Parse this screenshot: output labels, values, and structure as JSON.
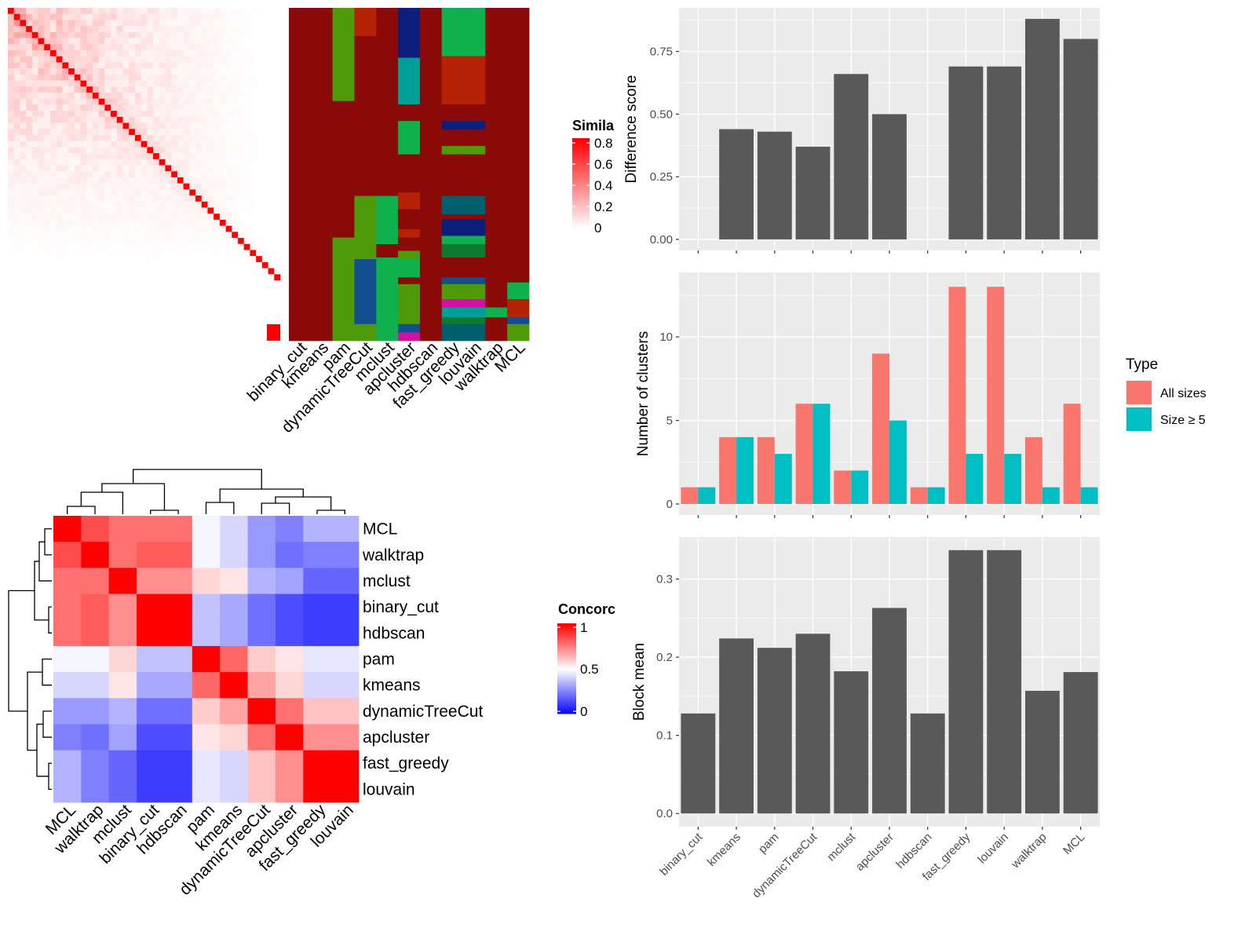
{
  "colors": {
    "dark_red": "#8B0A0A",
    "green1": "#0FB14F",
    "green2": "#4E9A0B",
    "green3": "#0C7A31",
    "teal1": "#009E96",
    "teal2": "#005F6D",
    "navy": "#0C1F7A",
    "blue_steel": "#124F8F",
    "magenta": "#D40FA8",
    "orange_red": "#B52205",
    "bar_gray": "#595959",
    "salmon": "#F8766D",
    "cyan": "#00BFC4",
    "panel_bg": "#EBEBEB",
    "grid": "#FFFFFF"
  },
  "legends": {
    "similarity": {
      "title": "Simila",
      "ticks": [
        "0.8",
        "0.6",
        "0.4",
        "0.2",
        "0"
      ]
    },
    "concordance": {
      "title": "Concorc",
      "ticks": [
        "1",
        "0.5",
        "0"
      ]
    },
    "type": {
      "title": "Type",
      "items": [
        "All sizes",
        "Size ≥ 5"
      ]
    }
  },
  "assign_methods": [
    "binary_cut",
    "kmeans",
    "pam",
    "dynamicTreeCut",
    "mclust",
    "apcluster",
    "hdbscan",
    "fast_greedy",
    "louvain",
    "walktrap",
    "MCL"
  ],
  "assign_columns": [
    [
      [
        "dark_red",
        0,
        1
      ]
    ],
    [
      [
        "dark_red",
        0,
        1
      ]
    ],
    [
      [
        "green2",
        0,
        0.28
      ],
      [
        "dark_red",
        0.28,
        0.69
      ],
      [
        "green2",
        0.69,
        1
      ]
    ],
    [
      [
        "orange_red",
        0,
        0.085
      ],
      [
        "dark_red",
        0.085,
        0.28
      ],
      [
        "dark_red",
        0.28,
        0.565
      ],
      [
        "green2",
        0.565,
        0.755
      ],
      [
        "blue_steel",
        0.755,
        0.95
      ],
      [
        "green2",
        0.95,
        1
      ]
    ],
    [
      [
        "dark_red",
        0,
        0.565
      ],
      [
        "green1",
        0.565,
        0.71
      ],
      [
        "dark_red",
        0.71,
        0.75
      ],
      [
        "green1",
        0.75,
        1
      ]
    ],
    [
      [
        "navy",
        0,
        0.15
      ],
      [
        "teal1",
        0.15,
        0.29
      ],
      [
        "dark_red",
        0.29,
        0.34
      ],
      [
        "green1",
        0.34,
        0.44
      ],
      [
        "dark_red",
        0.44,
        0.555
      ],
      [
        "orange_red",
        0.555,
        0.605
      ],
      [
        "dark_red",
        0.605,
        0.665
      ],
      [
        "orange_red",
        0.665,
        0.69
      ],
      [
        "dark_red",
        0.69,
        0.73
      ],
      [
        "green2",
        0.73,
        0.755
      ],
      [
        "green1",
        0.755,
        0.81
      ],
      [
        "dark_red",
        0.81,
        0.83
      ],
      [
        "green2",
        0.83,
        0.95
      ],
      [
        "blue_steel",
        0.95,
        0.975
      ],
      [
        "magenta",
        0.975,
        1
      ]
    ],
    [
      [
        "dark_red",
        0,
        1
      ]
    ],
    [
      [
        "green1",
        0,
        0.145
      ],
      [
        "orange_red",
        0.145,
        0.29
      ],
      [
        "dark_red",
        0.29,
        0.34
      ],
      [
        "navy",
        0.34,
        0.365
      ],
      [
        "dark_red",
        0.365,
        0.415
      ],
      [
        "green2",
        0.415,
        0.44
      ],
      [
        "dark_red",
        0.44,
        0.565
      ],
      [
        "teal2",
        0.565,
        0.62
      ],
      [
        "dark_red",
        0.62,
        0.635
      ],
      [
        "navy",
        0.635,
        0.685
      ],
      [
        "green1",
        0.685,
        0.71
      ],
      [
        "green3",
        0.71,
        0.75
      ],
      [
        "dark_red",
        0.75,
        0.81
      ],
      [
        "blue_steel",
        0.81,
        0.83
      ],
      [
        "green2",
        0.83,
        0.875
      ],
      [
        "magenta",
        0.875,
        0.9
      ],
      [
        "teal1",
        0.9,
        0.93
      ],
      [
        "green3",
        0.93,
        0.95
      ],
      [
        "teal2",
        0.95,
        1
      ]
    ],
    [
      [
        "green1",
        0,
        0.145
      ],
      [
        "orange_red",
        0.145,
        0.29
      ],
      [
        "dark_red",
        0.29,
        0.34
      ],
      [
        "navy",
        0.34,
        0.365
      ],
      [
        "dark_red",
        0.365,
        0.415
      ],
      [
        "green2",
        0.415,
        0.44
      ],
      [
        "dark_red",
        0.44,
        0.565
      ],
      [
        "teal2",
        0.565,
        0.62
      ],
      [
        "dark_red",
        0.62,
        0.635
      ],
      [
        "navy",
        0.635,
        0.685
      ],
      [
        "green1",
        0.685,
        0.71
      ],
      [
        "green3",
        0.71,
        0.75
      ],
      [
        "dark_red",
        0.75,
        0.81
      ],
      [
        "blue_steel",
        0.81,
        0.83
      ],
      [
        "green2",
        0.83,
        0.875
      ],
      [
        "magenta",
        0.875,
        0.9
      ],
      [
        "teal1",
        0.9,
        0.93
      ],
      [
        "green3",
        0.93,
        0.95
      ],
      [
        "teal2",
        0.95,
        1
      ]
    ],
    [
      [
        "dark_red",
        0,
        0.9
      ],
      [
        "green1",
        0.9,
        0.93
      ],
      [
        "dark_red",
        0.93,
        1
      ]
    ],
    [
      [
        "dark_red",
        0,
        0.825
      ],
      [
        "green1",
        0.825,
        0.875
      ],
      [
        "orange_red",
        0.875,
        0.93
      ],
      [
        "blue_steel",
        0.93,
        0.95
      ],
      [
        "green2",
        0.95,
        1
      ]
    ]
  ],
  "concordance": {
    "methods": [
      "MCL",
      "walktrap",
      "mclust",
      "binary_cut",
      "hdbscan",
      "pam",
      "kmeans",
      "dynamicTreeCut",
      "apcluster",
      "fast_greedy",
      "louvain"
    ],
    "matrix": [
      [
        1.0,
        0.85,
        0.78,
        0.78,
        0.78,
        0.48,
        0.42,
        0.3,
        0.25,
        0.35,
        0.35
      ],
      [
        0.85,
        1.0,
        0.78,
        0.82,
        0.82,
        0.48,
        0.42,
        0.3,
        0.22,
        0.25,
        0.25
      ],
      [
        0.78,
        0.78,
        1.0,
        0.72,
        0.72,
        0.58,
        0.55,
        0.35,
        0.32,
        0.2,
        0.2
      ],
      [
        0.78,
        0.82,
        0.72,
        1.0,
        1.0,
        0.38,
        0.33,
        0.22,
        0.15,
        0.12,
        0.12
      ],
      [
        0.78,
        0.82,
        0.72,
        1.0,
        1.0,
        0.38,
        0.33,
        0.22,
        0.15,
        0.12,
        0.12
      ],
      [
        0.48,
        0.48,
        0.58,
        0.38,
        0.38,
        1.0,
        0.8,
        0.6,
        0.55,
        0.45,
        0.45
      ],
      [
        0.42,
        0.42,
        0.55,
        0.33,
        0.33,
        0.8,
        1.0,
        0.68,
        0.58,
        0.42,
        0.42
      ],
      [
        0.3,
        0.3,
        0.35,
        0.22,
        0.22,
        0.6,
        0.68,
        1.0,
        0.78,
        0.62,
        0.62
      ],
      [
        0.25,
        0.22,
        0.32,
        0.15,
        0.15,
        0.55,
        0.58,
        0.78,
        1.0,
        0.72,
        0.72
      ],
      [
        0.35,
        0.25,
        0.2,
        0.12,
        0.12,
        0.45,
        0.42,
        0.62,
        0.72,
        1.0,
        1.0
      ],
      [
        0.35,
        0.25,
        0.2,
        0.12,
        0.12,
        0.45,
        0.42,
        0.62,
        0.72,
        1.0,
        1.0
      ]
    ]
  },
  "chart_data": [
    {
      "type": "heatmap",
      "title": "",
      "legend_title": "Simila",
      "size": 45,
      "description_scale": [
        0,
        0.8
      ]
    },
    {
      "type": "bar",
      "categories": [
        "binary_cut",
        "kmeans",
        "pam",
        "dynamicTreeCut",
        "mclust",
        "apcluster",
        "hdbscan",
        "fast_greedy",
        "louvain",
        "walktrap",
        "MCL"
      ],
      "values": [
        null,
        0.44,
        0.43,
        0.37,
        0.66,
        0.5,
        null,
        0.69,
        0.69,
        0.88,
        0.8
      ],
      "ylabel": "Difference score",
      "ylim": [
        0,
        0.88
      ],
      "yticks": [
        "0.00",
        "0.25",
        "0.50",
        "0.75"
      ]
    },
    {
      "type": "bar",
      "categories": [
        "binary_cut",
        "kmeans",
        "pam",
        "dynamicTreeCut",
        "mclust",
        "apcluster",
        "hdbscan",
        "fast_greedy",
        "louvain",
        "walktrap",
        "MCL"
      ],
      "series": [
        {
          "name": "All sizes",
          "values": [
            1,
            4,
            4,
            6,
            2,
            9,
            1,
            13,
            13,
            4,
            6
          ]
        },
        {
          "name": "Size ≥ 5",
          "values": [
            1,
            4,
            3,
            6,
            2,
            5,
            1,
            3,
            3,
            1,
            1
          ]
        }
      ],
      "ylabel": "Number of clusters",
      "ylim": [
        0,
        13.2
      ],
      "yticks": [
        "0",
        "5",
        "10"
      ],
      "legend_title": "Type"
    },
    {
      "type": "bar",
      "categories": [
        "binary_cut",
        "kmeans",
        "pam",
        "dynamicTreeCut",
        "mclust",
        "apcluster",
        "hdbscan",
        "fast_greedy",
        "louvain",
        "walktrap",
        "MCL"
      ],
      "values": [
        0.128,
        0.224,
        0.212,
        0.23,
        0.182,
        0.263,
        0.128,
        0.337,
        0.337,
        0.157,
        0.181
      ],
      "ylabel": "Block mean",
      "ylim": [
        0,
        0.337
      ],
      "yticks": [
        "0.0",
        "0.1",
        "0.2",
        "0.3"
      ]
    }
  ]
}
